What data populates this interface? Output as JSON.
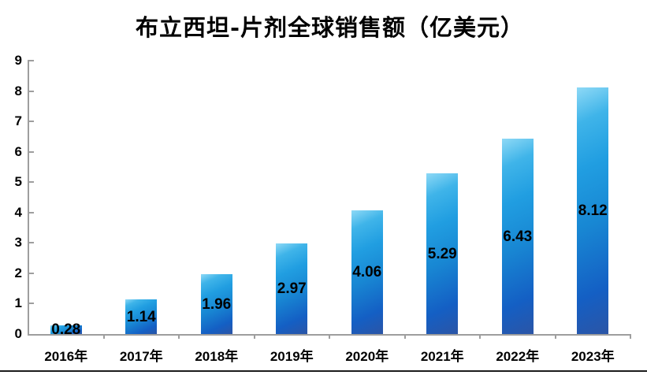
{
  "chart_data": {
    "type": "bar",
    "title": "布立西坦-片剂全球销售额（亿美元）",
    "categories": [
      "2016年",
      "2017年",
      "2018年",
      "2019年",
      "2020年",
      "2021年",
      "2022年",
      "2023年"
    ],
    "values": [
      0.28,
      1.14,
      1.96,
      2.97,
      4.06,
      5.29,
      6.43,
      8.12
    ],
    "data_labels": [
      "0.28",
      "1.14",
      "1.96",
      "2.97",
      "4.06",
      "5.29",
      "6.43",
      "8.12"
    ],
    "xlabel": "",
    "ylabel": "",
    "ylim": [
      0,
      9
    ],
    "y_ticks": [
      0,
      1,
      2,
      3,
      4,
      5,
      6,
      7,
      8,
      9
    ],
    "grid": false,
    "legend": "none",
    "data_label_position": "center",
    "colors": {
      "bar_gradient_light": "#8ed9f6",
      "bar_gradient_main": "#1887d3",
      "bar_gradient_dark": "#2b55a6",
      "axis_line": "#9e9e9e",
      "text": "#000000",
      "bottom_rule": "#1c1c1c"
    }
  }
}
